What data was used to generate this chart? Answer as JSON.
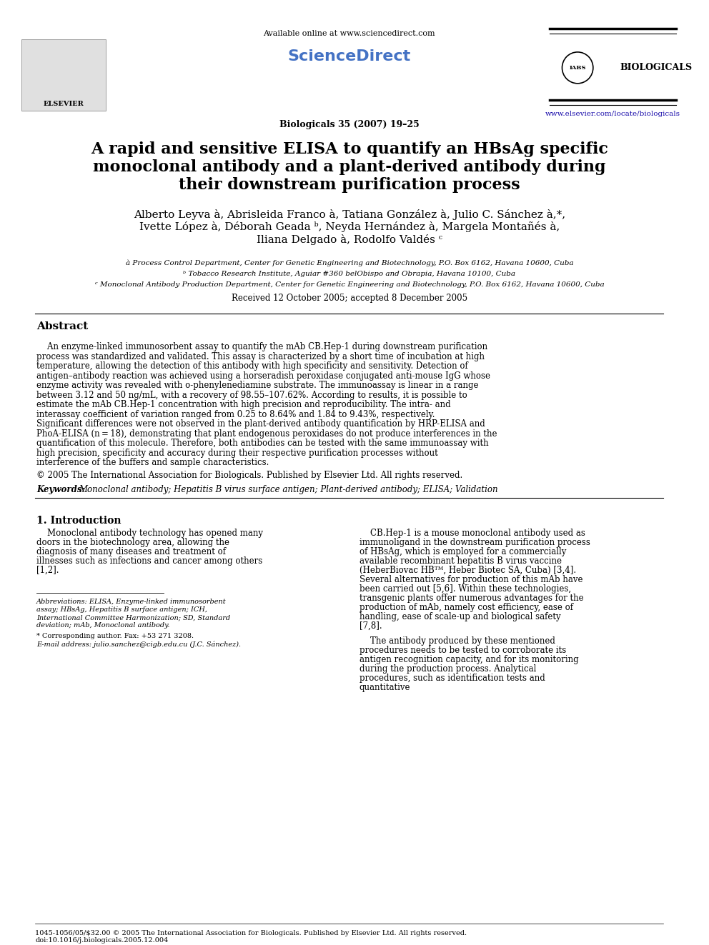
{
  "background_color": "#ffffff",
  "header_available_online": "Available online at www.sciencedirect.com",
  "journal_info": "Biologicals 35 (2007) 19–25",
  "elsevier_url": "www.elsevier.com/locate/biologicals",
  "title_line1": "A rapid and sensitive ELISA to quantify an HBsAg specific",
  "title_line2": "monoclonal antibody and a plant-derived antibody during",
  "title_line3": "their downstream purification process",
  "authors_line1": "Alberto Leyva à, Abrisleida Franco à, Tatiana González à, Julio C. Sánchez à,*,",
  "authors_line2": "Ivette López à, Déborah Geada ᵇ, Neyda Hernández à, Margela Montañés à,",
  "authors_line3": "Iliana Delgado à, Rodolfo Valdés ᶜ",
  "affil_a": "à Process Control Department, Center for Genetic Engineering and Biotechnology, P.O. Box 6162, Havana 10600, Cuba",
  "affil_b": "ᵇ Tobacco Research Institute, Aguiar #360 belObispo and Obrapia, Havana 10100, Cuba",
  "affil_c": "ᶜ Monoclonal Antibody Production Department, Center for Genetic Engineering and Biotechnology, P.O. Box 6162, Havana 10600, Cuba",
  "received": "Received 12 October 2005; accepted 8 December 2005",
  "abstract_title": "Abstract",
  "abstract_text": "An enzyme-linked immunosorbent assay to quantify the mAb CB.Hep-1 during downstream purification process was standardized and validated. This assay is characterized by a short time of incubation at high temperature, allowing the detection of this antibody with high specificity and sensitivity. Detection of antigen–antibody reaction was achieved using a horseradish peroxidase conjugated anti-mouse IgG whose enzyme activity was revealed with o-phenylenediamine substrate. The immunoassay is linear in a range between 3.12 and 50 ng/mL, with a recovery of 98.55–107.62%. According to results, it is possible to estimate the mAb CB.Hep-1 concentration with high precision and reproducibility. The intra- and interassay coefficient of variation ranged from 0.25 to 8.64% and 1.84 to 9.43%, respectively. Significant differences were not observed in the plant-derived antibody quantification by HRP-ELISA and PhoA-ELISA (n = 18), demonstrating that plant endogenous peroxidases do not produce interferences in the quantification of this molecule. Therefore, both antibodies can be tested with the same immunoassay with high precision, specificity and accuracy during their respective purification processes without interference of the buffers and sample characteristics.",
  "copyright": "© 2005 The International Association for Biologicals. Published by Elsevier Ltd. All rights reserved.",
  "keywords_label": "Keywords:",
  "keywords_text": "Monoclonal antibody; Hepatitis B virus surface antigen; Plant-derived antibody; ELISA; Validation",
  "section1_title": "1. Introduction",
  "section1_col1_para1": "Monoclonal antibody technology has opened many doors in the biotechnology area, allowing the diagnosis of many diseases and treatment of illnesses such as infections and cancer among others [1,2].",
  "footnote_abbrev": "Abbreviations: ELISA, Enzyme-linked immunosorbent assay; HBsAg, Hepatitis B surface antigen; ICH, International Committee Harmonization; SD, Standard deviation; mAb, Monoclonal antibody.",
  "footnote_corresponding": "* Corresponding author. Fax: +53 271 3208.",
  "footnote_email": "E-mail address: julio.sanchez@cigb.edu.cu (J.C. Sánchez).",
  "section1_col2_para1": "CB.Hep-1 is a mouse monoclonal antibody used as immunoligand in the downstream purification process of HBsAg, which is employed for a commercially available recombinant hepatitis B virus vaccine (HeberBiovac HBᵀᴹ, Heber Biotec SA, Cuba) [3,4]. Several alternatives for production of this mAb have been carried out [5,6]. Within these technologies, transgenic plants offer numerous advantages for the production of mAb, namely cost efficiency, ease of handling, ease of scale-up and biological safety [7,8].",
  "section1_col2_para2": "The antibody produced by these mentioned procedures needs to be tested to corroborate its antigen recognition capacity, and for its monitoring during the production process. Analytical procedures, such as identification tests and quantitative",
  "footer_issn": "1045-1056/05/$32.00 © 2005 The International Association for Biologicals. Published by Elsevier Ltd. All rights reserved.",
  "footer_doi": "doi:10.1016/j.biologicals.2005.12.004"
}
